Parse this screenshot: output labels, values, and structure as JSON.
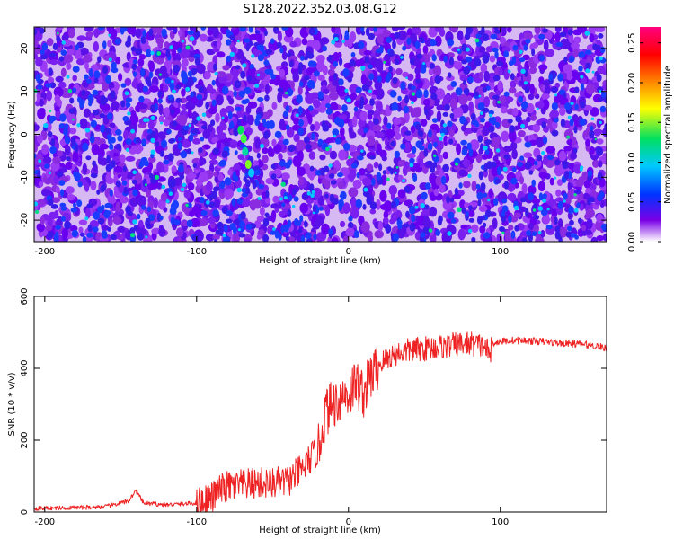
{
  "title": "S128.2022.352.03.08.G12",
  "chart_data": [
    {
      "type": "heatmap",
      "name": "spectrogram",
      "xlabel": "Height of straight line (km)",
      "ylabel": "Frequency (Hz)",
      "xlim": [
        -207,
        170
      ],
      "ylim": [
        -25,
        25
      ],
      "xticks": [
        "-200",
        "-100",
        "0",
        "100"
      ],
      "yticks": [
        "-20",
        "-10",
        "0",
        "10",
        "20"
      ],
      "colorbar": {
        "label": "Normalized spectral amplitude",
        "range": [
          0.0,
          0.27
        ],
        "ticks": [
          "0.00",
          "0.05",
          "0.10",
          "0.15",
          "0.20",
          "0.25"
        ],
        "colors": [
          "#ffffff",
          "#7a00e6",
          "#0033ff",
          "#00c8ff",
          "#00e060",
          "#ffff00",
          "#ff8000",
          "#ff0000",
          "#ff0080"
        ]
      }
    },
    {
      "type": "line",
      "name": "snr",
      "xlabel": "Height of straight line (km)",
      "ylabel": "SNR (10 * v/v)",
      "xlim": [
        -207,
        170
      ],
      "ylim": [
        0,
        600
      ],
      "xticks": [
        "-200",
        "-100",
        "0",
        "100"
      ],
      "yticks": [
        "0",
        "200",
        "400",
        "600"
      ],
      "color": "#ee2222",
      "x": [
        -207,
        -180,
        -160,
        -145,
        -140,
        -135,
        -120,
        -100,
        -90,
        -85,
        -80,
        -70,
        -60,
        -50,
        -40,
        -30,
        -25,
        -20,
        -15,
        -10,
        -5,
        0,
        5,
        10,
        15,
        20,
        30,
        40,
        50,
        60,
        70,
        80,
        85,
        90,
        93,
        95,
        100,
        110,
        120,
        130,
        140,
        150,
        160,
        170
      ],
      "y": [
        10,
        12,
        15,
        30,
        60,
        25,
        20,
        25,
        40,
        60,
        70,
        75,
        80,
        80,
        85,
        120,
        150,
        170,
        280,
        300,
        320,
        330,
        360,
        330,
        380,
        410,
        440,
        450,
        455,
        460,
        465,
        470,
        465,
        460,
        440,
        470,
        475,
        478,
        476,
        474,
        470,
        468,
        465,
        455
      ]
    }
  ]
}
